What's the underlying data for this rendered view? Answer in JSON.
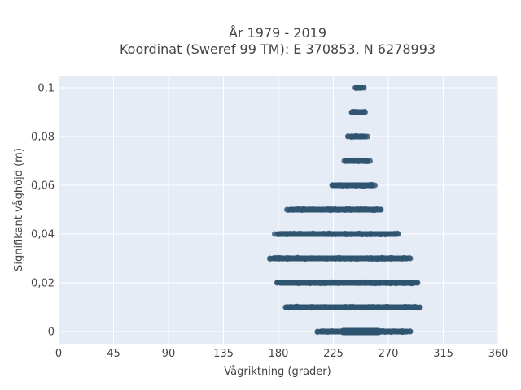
{
  "chart_data": {
    "type": "scatter",
    "title": "År 1979 - 2019",
    "subtitle": "Koordinat (Sweref 99 TM): E 370853, N 6278993",
    "xlabel": "Vågriktning (grader)",
    "ylabel": "Signifikant våghöjd (m)",
    "xlim": [
      0,
      360
    ],
    "ylim": [
      -0.005,
      0.105
    ],
    "x_ticks": [
      0,
      45,
      90,
      135,
      180,
      225,
      270,
      315,
      360
    ],
    "x_tick_labels": [
      "0",
      "45",
      "90",
      "135",
      "180",
      "225",
      "270",
      "315",
      "360"
    ],
    "y_ticks": [
      0,
      0.02,
      0.04,
      0.06,
      0.08,
      0.1
    ],
    "y_tick_labels": [
      "0",
      "0,02",
      "0,04",
      "0,06",
      "0,08",
      "0,1"
    ],
    "grid": true,
    "background": "#e5ecf6",
    "marker_color": "#2f5470",
    "series": [
      {
        "note_ranges": "each y level has points spanning the given x range",
        "levels": [
          {
            "y": 0.0,
            "x_min": 212,
            "x_max": 288,
            "dense_min": 233,
            "dense_max": 262
          },
          {
            "y": 0.01,
            "x_min": 186,
            "x_max": 296
          },
          {
            "y": 0.02,
            "x_min": 179,
            "x_max": 294
          },
          {
            "y": 0.03,
            "x_min": 173,
            "x_max": 288
          },
          {
            "y": 0.04,
            "x_min": 177,
            "x_max": 278
          },
          {
            "y": 0.05,
            "x_min": 187,
            "x_max": 264
          },
          {
            "y": 0.06,
            "x_min": 224,
            "x_max": 259
          },
          {
            "y": 0.07,
            "x_min": 234,
            "x_max": 255
          },
          {
            "y": 0.08,
            "x_min": 237,
            "x_max": 253
          },
          {
            "y": 0.09,
            "x_min": 240,
            "x_max": 251
          },
          {
            "y": 0.1,
            "x_min": 243,
            "x_max": 250
          }
        ]
      }
    ]
  }
}
